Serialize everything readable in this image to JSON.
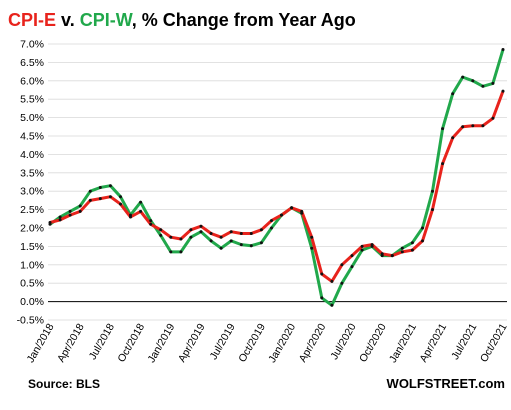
{
  "chart_data": {
    "type": "line",
    "title_parts": [
      {
        "text": "CPI-E",
        "color": "#e8231c"
      },
      {
        "text": " v. ",
        "color": "#000000"
      },
      {
        "text": "CPI-W",
        "color": "#21a84b"
      },
      {
        "text": ", % Change from Year Ago",
        "color": "#000000"
      }
    ],
    "ylim": [
      -0.5,
      7.0
    ],
    "yticks": [
      "-0.5%",
      "0.0%",
      "0.5%",
      "1.0%",
      "1.5%",
      "2.0%",
      "2.5%",
      "3.0%",
      "3.5%",
      "4.0%",
      "4.5%",
      "5.0%",
      "5.5%",
      "6.0%",
      "6.5%",
      "7.0%"
    ],
    "ytick_values": [
      -0.5,
      0,
      0.5,
      1.0,
      1.5,
      2.0,
      2.5,
      3.0,
      3.5,
      4.0,
      4.5,
      5.0,
      5.5,
      6.0,
      6.5,
      7.0
    ],
    "x_labels": [
      "Jan/2018",
      "Apr/2018",
      "Jul/2018",
      "Oct/2018",
      "Jan/2019",
      "Apr/2019",
      "Jul/2019",
      "Oct/2019",
      "Jan/2020",
      "Apr/2020",
      "Jul/2020",
      "Oct/2020",
      "Jan/2021",
      "Apr/2021",
      "Jul/2021",
      "Oct/2021"
    ],
    "x_label_positions": [
      0,
      3,
      6,
      9,
      12,
      15,
      18,
      21,
      24,
      27,
      30,
      33,
      36,
      39,
      42,
      45
    ],
    "grid": true,
    "series": [
      {
        "name": "CPI-E",
        "color": "#e8231c",
        "values": [
          2.15,
          2.22,
          2.35,
          2.45,
          2.75,
          2.8,
          2.85,
          2.65,
          2.3,
          2.45,
          2.1,
          1.95,
          1.75,
          1.7,
          1.95,
          2.05,
          1.85,
          1.75,
          1.9,
          1.85,
          1.85,
          1.95,
          2.2,
          2.35,
          2.55,
          2.45,
          1.75,
          0.75,
          0.55,
          1.0,
          1.25,
          1.5,
          1.55,
          1.3,
          1.25,
          1.35,
          1.4,
          1.65,
          2.5,
          3.75,
          4.45,
          4.75,
          4.78,
          4.78,
          4.98,
          5.72
        ]
      },
      {
        "name": "CPI-W",
        "color": "#21a84b",
        "values": [
          2.1,
          2.3,
          2.45,
          2.6,
          3.0,
          3.1,
          3.15,
          2.85,
          2.35,
          2.7,
          2.2,
          1.8,
          1.35,
          1.35,
          1.75,
          1.9,
          1.65,
          1.45,
          1.65,
          1.55,
          1.52,
          1.6,
          2.0,
          2.35,
          2.55,
          2.4,
          1.45,
          0.1,
          -0.1,
          0.5,
          0.95,
          1.4,
          1.5,
          1.25,
          1.25,
          1.45,
          1.6,
          2.0,
          3.0,
          4.7,
          5.65,
          6.1,
          6.0,
          5.85,
          5.93,
          6.85
        ]
      }
    ],
    "source": "Source: BLS",
    "watermark": "WOLFSTREET.com"
  }
}
